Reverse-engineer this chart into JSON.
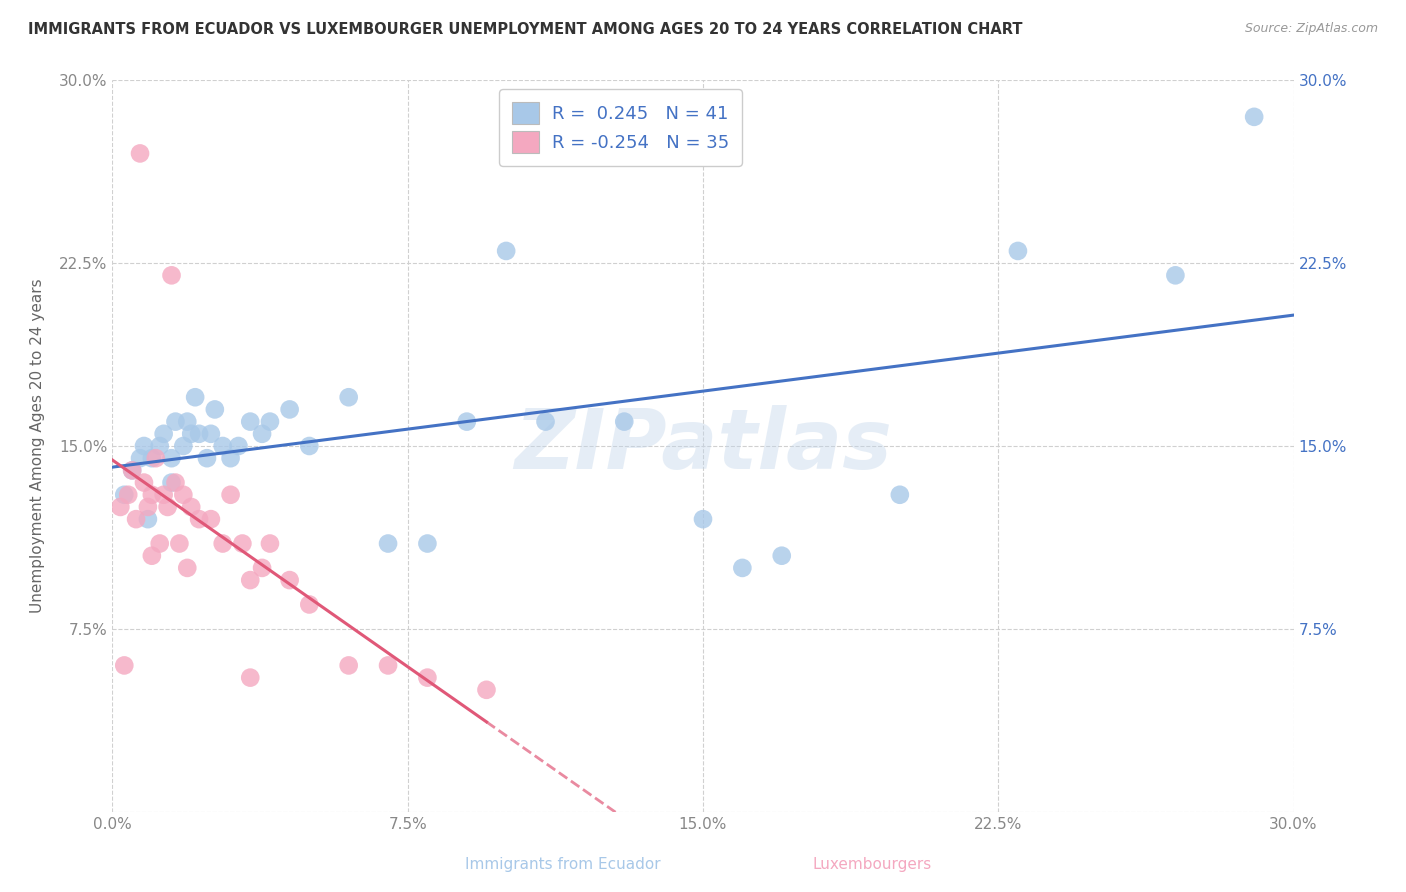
{
  "title": "IMMIGRANTS FROM ECUADOR VS LUXEMBOURGER UNEMPLOYMENT AMONG AGES 20 TO 24 YEARS CORRELATION CHART",
  "source": "Source: ZipAtlas.com",
  "ylabel": "Unemployment Among Ages 20 to 24 years",
  "xlabel_blue": "Immigrants from Ecuador",
  "xlabel_pink": "Luxembourgers",
  "xlim": [
    0.0,
    0.3
  ],
  "ylim": [
    0.0,
    0.3
  ],
  "xticks": [
    0.0,
    0.075,
    0.15,
    0.225,
    0.3
  ],
  "xtick_labels": [
    "0.0%",
    "7.5%",
    "15.0%",
    "22.5%",
    "30.0%"
  ],
  "yticks": [
    0.0,
    0.075,
    0.15,
    0.225,
    0.3
  ],
  "ytick_labels_left": [
    "",
    "7.5%",
    "15.0%",
    "22.5%",
    "30.0%"
  ],
  "ytick_labels_right": [
    "",
    "7.5%",
    "15.0%",
    "22.5%",
    "30.0%"
  ],
  "r_blue": 0.245,
  "n_blue": 41,
  "r_pink": -0.254,
  "n_pink": 35,
  "blue_color": "#a8c8e8",
  "pink_color": "#f4a8c0",
  "blue_line_color": "#4472c4",
  "pink_line_color": "#e05878",
  "watermark": "ZIPatlas",
  "blue_scatter_x": [
    0.003,
    0.005,
    0.007,
    0.008,
    0.009,
    0.01,
    0.012,
    0.013,
    0.015,
    0.015,
    0.016,
    0.018,
    0.019,
    0.02,
    0.021,
    0.022,
    0.024,
    0.025,
    0.026,
    0.028,
    0.03,
    0.032,
    0.035,
    0.038,
    0.04,
    0.045,
    0.05,
    0.06,
    0.07,
    0.08,
    0.09,
    0.1,
    0.11,
    0.13,
    0.15,
    0.16,
    0.17,
    0.2,
    0.23,
    0.27,
    0.29
  ],
  "blue_scatter_y": [
    0.13,
    0.14,
    0.145,
    0.15,
    0.12,
    0.145,
    0.15,
    0.155,
    0.135,
    0.145,
    0.16,
    0.15,
    0.16,
    0.155,
    0.17,
    0.155,
    0.145,
    0.155,
    0.165,
    0.15,
    0.145,
    0.15,
    0.16,
    0.155,
    0.16,
    0.165,
    0.15,
    0.17,
    0.11,
    0.11,
    0.16,
    0.23,
    0.16,
    0.16,
    0.12,
    0.1,
    0.105,
    0.13,
    0.23,
    0.22,
    0.285
  ],
  "pink_scatter_x": [
    0.002,
    0.003,
    0.004,
    0.005,
    0.006,
    0.007,
    0.008,
    0.009,
    0.01,
    0.01,
    0.011,
    0.012,
    0.013,
    0.014,
    0.015,
    0.016,
    0.017,
    0.018,
    0.019,
    0.02,
    0.022,
    0.025,
    0.028,
    0.03,
    0.033,
    0.035,
    0.038,
    0.04,
    0.045,
    0.05,
    0.06,
    0.07,
    0.08,
    0.095,
    0.035
  ],
  "pink_scatter_y": [
    0.125,
    0.06,
    0.13,
    0.14,
    0.12,
    0.27,
    0.135,
    0.125,
    0.13,
    0.105,
    0.145,
    0.11,
    0.13,
    0.125,
    0.22,
    0.135,
    0.11,
    0.13,
    0.1,
    0.125,
    0.12,
    0.12,
    0.11,
    0.13,
    0.11,
    0.095,
    0.1,
    0.11,
    0.095,
    0.085,
    0.06,
    0.06,
    0.055,
    0.05,
    0.055
  ]
}
